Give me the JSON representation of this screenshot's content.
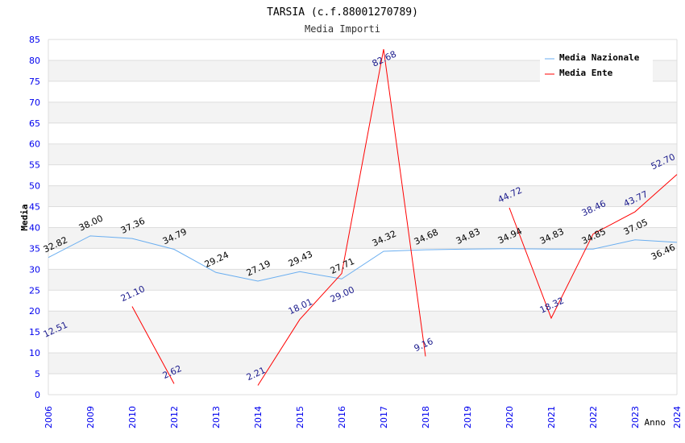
{
  "chart_data": {
    "type": "line",
    "title": "TARSIA (c.f.88001270789)",
    "subtitle": "Media Importi",
    "xlabel": "Anno",
    "ylabel": "Media",
    "ylim": [
      0,
      85
    ],
    "yticks": [
      "0",
      "5",
      "10",
      "15",
      "20",
      "25",
      "30",
      "35",
      "40",
      "45",
      "50",
      "55",
      "60",
      "65",
      "70",
      "75",
      "80",
      "85"
    ],
    "categories": [
      "2006",
      "2009",
      "2010",
      "2012",
      "2013",
      "2014",
      "2015",
      "2016",
      "2017",
      "2018",
      "2019",
      "2020",
      "2021",
      "2022",
      "2023",
      "2024"
    ],
    "grid": true,
    "legend_position": "top-right",
    "series": [
      {
        "name": "Media Nazionale",
        "color": "#6aaef0",
        "label_color": "#000000",
        "values": [
          32.82,
          38.0,
          37.36,
          34.79,
          29.24,
          27.19,
          29.43,
          27.71,
          34.32,
          34.68,
          34.83,
          34.94,
          34.83,
          34.85,
          37.05,
          36.46
        ],
        "labels": [
          "32.82",
          "38.00",
          "37.36",
          "34.79",
          "29.24",
          "27.19",
          "29.43",
          "27.71",
          "34.32",
          "34.68",
          "34.83",
          "34.94",
          "34.83",
          "34.85",
          "37.05",
          "36.46"
        ]
      },
      {
        "name": "Media Ente",
        "color": "#ff0000",
        "label_color": "#1a1a8c",
        "values": [
          12.51,
          null,
          21.1,
          2.62,
          null,
          2.21,
          18.01,
          29.0,
          82.68,
          9.16,
          null,
          44.72,
          18.32,
          38.46,
          43.77,
          52.7
        ],
        "labels": [
          "12.51",
          null,
          "21.10",
          "2.62",
          null,
          "2.21",
          "18.01",
          "29.00",
          "82.68",
          "9.16",
          null,
          "44.72",
          "18.32",
          "38.46",
          "43.77",
          "52.70"
        ]
      }
    ]
  }
}
